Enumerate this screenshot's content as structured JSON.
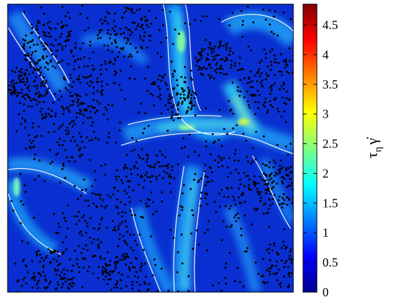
{
  "chart_data": {
    "type": "heatmap",
    "title": "",
    "xlabel": "",
    "ylabel": "",
    "colorbar": {
      "label_main": "τ",
      "label_sub": "η",
      "label_var": "γ̇",
      "range": [
        0,
        4.85
      ],
      "ticks": [
        0,
        0.5,
        1,
        1.5,
        2,
        2.5,
        3,
        3.5,
        4,
        4.5
      ],
      "tick_labels": [
        "0",
        "0.5",
        "1",
        "1.5",
        "2",
        "2.5",
        "3",
        "3.5",
        "4",
        "4.5"
      ],
      "colormap": "jet",
      "colors": [
        "#00008f",
        "#0000ff",
        "#0080ff",
        "#00ffff",
        "#80ff80",
        "#ffff00",
        "#ff8000",
        "#ff0000",
        "#800000"
      ]
    },
    "field_background": "#0a2fd0",
    "contour_color": "#ffffff",
    "particle_color": "#000000",
    "grid": false,
    "legend": "none"
  }
}
